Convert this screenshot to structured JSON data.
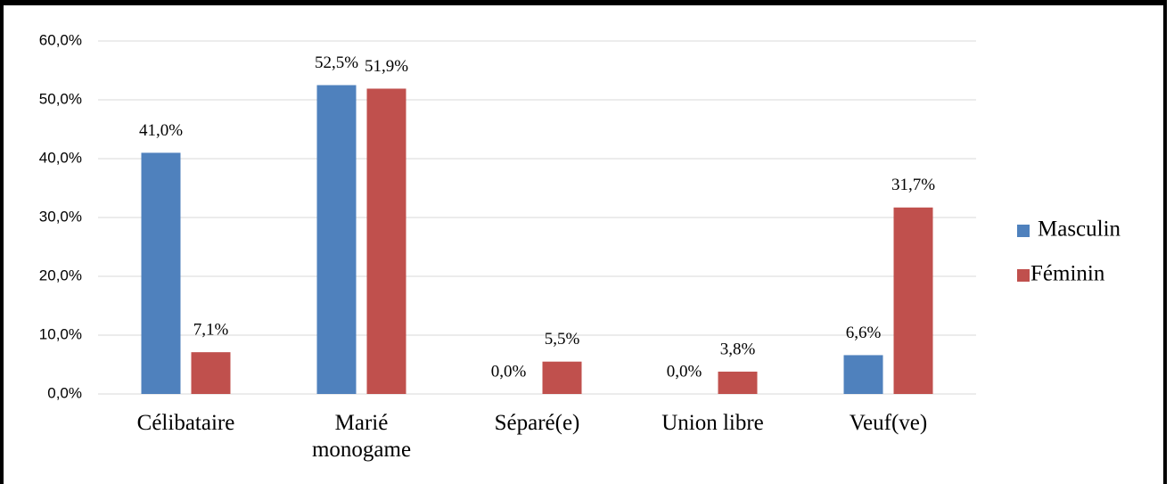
{
  "chart_data": {
    "type": "bar",
    "categories": [
      "Célibataire",
      "Marié monogame",
      "Séparé(e)",
      "Union libre",
      "Veuf(ve)"
    ],
    "series": [
      {
        "name": "Masculin",
        "color": "#4f81bd",
        "values": [
          41.0,
          52.5,
          0.0,
          0.0,
          6.6
        ],
        "value_labels": [
          "41,0%",
          "52,5%",
          "0,0%",
          "0,0%",
          "6,6%"
        ]
      },
      {
        "name": "Féminin",
        "color": "#c0504d",
        "values": [
          7.1,
          51.9,
          5.5,
          3.8,
          31.7
        ],
        "value_labels": [
          "7,1%",
          "51,9%",
          "5,5%",
          "3,8%",
          "31,7%"
        ]
      }
    ],
    "ylim": [
      0,
      60
    ],
    "yticks": [
      {
        "value": 0,
        "label": "0,0%"
      },
      {
        "value": 10,
        "label": "10,0%"
      },
      {
        "value": 20,
        "label": "20,0%"
      },
      {
        "value": 30,
        "label": "30,0%"
      },
      {
        "value": 40,
        "label": "40,0%"
      },
      {
        "value": 50,
        "label": "50,0%"
      },
      {
        "value": 60,
        "label": "60,0%"
      }
    ],
    "grid": true,
    "legend": "right"
  }
}
